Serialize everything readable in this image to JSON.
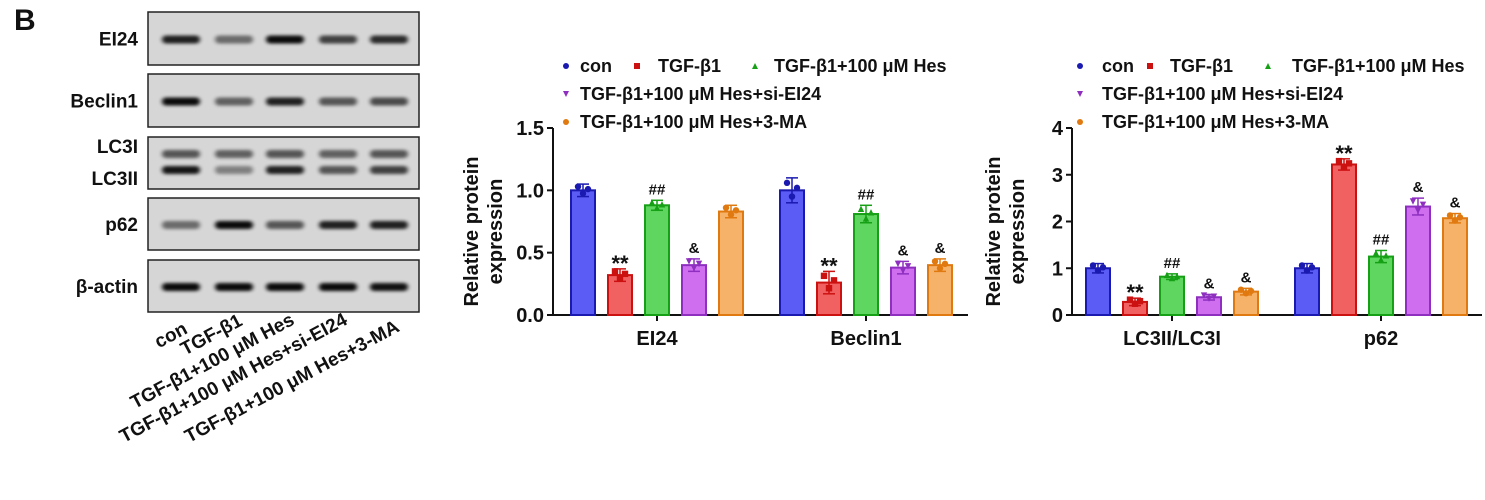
{
  "panel_label": "B",
  "blot": {
    "rows": [
      {
        "label": "EI24",
        "bands": [
          [
            0.85,
            0.5,
            0.95,
            0.7,
            0.8
          ]
        ]
      },
      {
        "label": "Beclin1",
        "bands": [
          [
            0.95,
            0.55,
            0.85,
            0.6,
            0.65
          ]
        ]
      },
      {
        "label": "LC3I",
        "label2": "LC3II",
        "bands": [
          [
            0.6,
            0.55,
            0.6,
            0.55,
            0.6
          ],
          [
            0.9,
            0.4,
            0.85,
            0.6,
            0.7
          ]
        ]
      },
      {
        "label": "p62",
        "bands": [
          [
            0.5,
            0.95,
            0.6,
            0.85,
            0.85
          ]
        ]
      },
      {
        "label": "β-actin",
        "bands": [
          [
            0.95,
            0.95,
            0.95,
            0.95,
            0.92
          ]
        ]
      }
    ],
    "lanes": [
      "con",
      "TGF-β1",
      "TGF-β1+100 μM Hes",
      "TGF-β1+100 μM Hes+si-EI24",
      "TGF-β1+100 μM Hes+3-MA"
    ]
  },
  "colors": [
    "#5b5bf5",
    "#f26161",
    "#5fd65f",
    "#cf6ff0",
    "#f7b26a"
  ],
  "edge_colors": [
    "#1a1ab0",
    "#cc1111",
    "#16a016",
    "#8e2fc0",
    "#e07a10"
  ],
  "chart_data": [
    {
      "type": "bar",
      "ylabel": "Relative protein expression",
      "ylabel_lines": [
        "Relative protein",
        "expression"
      ],
      "ylim": [
        0,
        1.5
      ],
      "yticks": [
        "0.0",
        "0.5",
        "1.0",
        "1.5"
      ],
      "ytick_values": [
        0,
        0.5,
        1.0,
        1.5
      ],
      "categories": [
        "EI24",
        "Beclin1"
      ],
      "legend": [
        "con",
        "TGF-β1",
        "TGF-β1+100 μM Hes",
        "TGF-β1+100 μM Hes+si-EI24",
        "TGF-β1+100 μM Hes+3-MA"
      ],
      "legend_placement": "top",
      "series": [
        {
          "name": "con",
          "values": [
            1.0,
            1.0
          ],
          "err": [
            0.05,
            0.1
          ],
          "annot": [
            "",
            ""
          ]
        },
        {
          "name": "TGF-β1",
          "values": [
            0.32,
            0.26
          ],
          "err": [
            0.05,
            0.09
          ],
          "annot": [
            "**",
            "**"
          ]
        },
        {
          "name": "TGF-β1+100 μM Hes",
          "values": [
            0.88,
            0.81
          ],
          "err": [
            0.04,
            0.07
          ],
          "annot": [
            "##",
            "##"
          ]
        },
        {
          "name": "TGF-β1+100 μM Hes+si-EI24",
          "values": [
            0.4,
            0.38
          ],
          "err": [
            0.05,
            0.05
          ],
          "annot": [
            "&",
            "&"
          ]
        },
        {
          "name": "TGF-β1+100 μM Hes+3-MA",
          "values": [
            0.83,
            0.4
          ],
          "err": [
            0.05,
            0.05
          ],
          "annot": [
            "",
            "&"
          ]
        }
      ]
    },
    {
      "type": "bar",
      "ylabel": "Relative protein expression",
      "ylabel_lines": [
        "Relative protein",
        "expression"
      ],
      "ylim": [
        0,
        4
      ],
      "yticks": [
        "0",
        "1",
        "2",
        "3",
        "4"
      ],
      "ytick_values": [
        0,
        1,
        2,
        3,
        4
      ],
      "categories": [
        "LC3II/LC3I",
        "p62"
      ],
      "legend": [
        "con",
        "TGF-β1",
        "TGF-β1+100 μM Hes",
        "TGF-β1+100 μM Hes+si-EI24",
        "TGF-β1+100 μM Hes+3-MA"
      ],
      "legend_placement": "top",
      "series": [
        {
          "name": "con",
          "values": [
            1.0,
            1.0
          ],
          "err": [
            0.1,
            0.1
          ],
          "annot": [
            "",
            ""
          ]
        },
        {
          "name": "TGF-β1",
          "values": [
            0.28,
            3.22
          ],
          "err": [
            0.08,
            0.12
          ],
          "annot": [
            "**",
            "**"
          ]
        },
        {
          "name": "TGF-β1+100 μM Hes",
          "values": [
            0.82,
            1.25
          ],
          "err": [
            0.06,
            0.13
          ],
          "annot": [
            "##",
            "##"
          ]
        },
        {
          "name": "TGF-β1+100 μM Hes+si-EI24",
          "values": [
            0.38,
            2.32
          ],
          "err": [
            0.06,
            0.18
          ],
          "annot": [
            "&",
            "&"
          ]
        },
        {
          "name": "TGF-β1+100 μM Hes+3-MA",
          "values": [
            0.5,
            2.07
          ],
          "err": [
            0.07,
            0.1
          ],
          "annot": [
            "&",
            "&"
          ]
        }
      ]
    }
  ]
}
